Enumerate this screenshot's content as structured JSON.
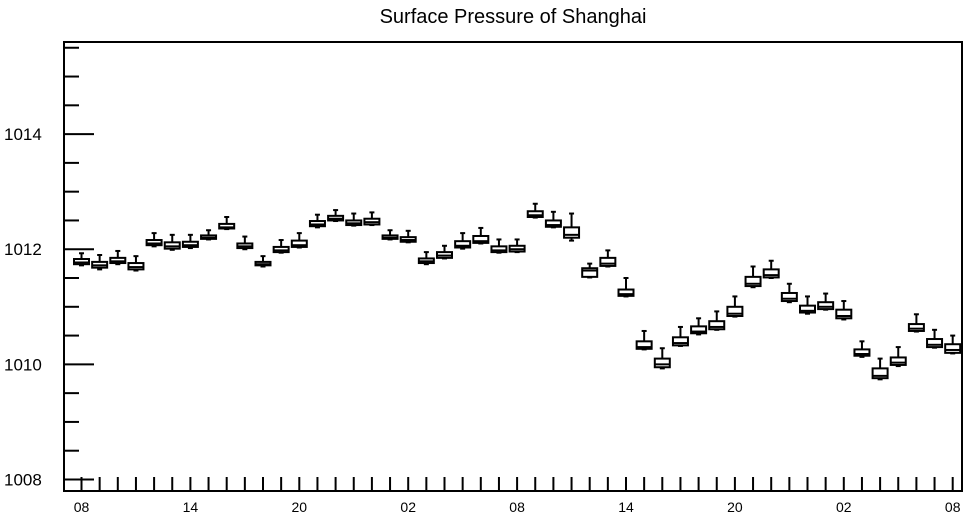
{
  "chart_data": {
    "type": "box",
    "title": "Surface Pressure of Shanghai",
    "xlabel": "",
    "ylabel": "",
    "ylim": [
      1007.8,
      1015.6
    ],
    "yticks": [
      1008,
      1010,
      1012,
      1014
    ],
    "ytick_labels": [
      "1008",
      "1010",
      "1012",
      "1014"
    ],
    "xtick_labels": [
      "08",
      "14",
      "20",
      "02",
      "08",
      "14",
      "20",
      "02",
      "08"
    ],
    "grid": false,
    "legend": "none",
    "boxes": [
      {
        "index": 0,
        "whisker_low": 1011.72,
        "q1": 1011.74,
        "median": 1011.77,
        "q3": 1011.83,
        "whisker_high": 1011.93
      },
      {
        "index": 1,
        "whisker_low": 1011.65,
        "q1": 1011.68,
        "median": 1011.72,
        "q3": 1011.78,
        "whisker_high": 1011.9
      },
      {
        "index": 2,
        "whisker_low": 1011.74,
        "q1": 1011.76,
        "median": 1011.79,
        "q3": 1011.85,
        "whisker_high": 1011.97
      },
      {
        "index": 3,
        "whisker_low": 1011.63,
        "q1": 1011.65,
        "median": 1011.69,
        "q3": 1011.76,
        "whisker_high": 1011.88
      },
      {
        "index": 4,
        "whisker_low": 1012.05,
        "q1": 1012.07,
        "median": 1012.1,
        "q3": 1012.16,
        "whisker_high": 1012.28
      },
      {
        "index": 5,
        "whisker_low": 1011.99,
        "q1": 1012.01,
        "median": 1012.05,
        "q3": 1012.12,
        "whisker_high": 1012.25
      },
      {
        "index": 6,
        "whisker_low": 1012.02,
        "q1": 1012.04,
        "median": 1012.07,
        "q3": 1012.13,
        "whisker_high": 1012.25
      },
      {
        "index": 7,
        "whisker_low": 1012.17,
        "q1": 1012.18,
        "median": 1012.2,
        "q3": 1012.24,
        "whisker_high": 1012.33
      },
      {
        "index": 8,
        "whisker_low": 1012.35,
        "q1": 1012.36,
        "median": 1012.38,
        "q3": 1012.44,
        "whisker_high": 1012.56
      },
      {
        "index": 9,
        "whisker_low": 1012.0,
        "q1": 1012.02,
        "median": 1012.05,
        "q3": 1012.1,
        "whisker_high": 1012.22
      },
      {
        "index": 10,
        "whisker_low": 1011.7,
        "q1": 1011.72,
        "median": 1011.74,
        "q3": 1011.78,
        "whisker_high": 1011.88
      },
      {
        "index": 11,
        "whisker_low": 1011.94,
        "q1": 1011.95,
        "median": 1011.98,
        "q3": 1012.04,
        "whisker_high": 1012.16
      },
      {
        "index": 12,
        "whisker_low": 1012.03,
        "q1": 1012.04,
        "median": 1012.07,
        "q3": 1012.15,
        "whisker_high": 1012.28
      },
      {
        "index": 13,
        "whisker_low": 1012.38,
        "q1": 1012.4,
        "median": 1012.43,
        "q3": 1012.49,
        "whisker_high": 1012.6
      },
      {
        "index": 14,
        "whisker_low": 1012.49,
        "q1": 1012.5,
        "median": 1012.53,
        "q3": 1012.58,
        "whisker_high": 1012.68
      },
      {
        "index": 15,
        "whisker_low": 1012.41,
        "q1": 1012.42,
        "median": 1012.45,
        "q3": 1012.5,
        "whisker_high": 1012.62
      },
      {
        "index": 16,
        "whisker_low": 1012.42,
        "q1": 1012.43,
        "median": 1012.47,
        "q3": 1012.53,
        "whisker_high": 1012.64
      },
      {
        "index": 17,
        "whisker_low": 1012.17,
        "q1": 1012.18,
        "median": 1012.2,
        "q3": 1012.24,
        "whisker_high": 1012.33
      },
      {
        "index": 18,
        "whisker_low": 1012.12,
        "q1": 1012.13,
        "median": 1012.16,
        "q3": 1012.21,
        "whisker_high": 1012.32
      },
      {
        "index": 19,
        "whisker_low": 1011.74,
        "q1": 1011.76,
        "median": 1011.79,
        "q3": 1011.84,
        "whisker_high": 1011.95
      },
      {
        "index": 20,
        "whisker_low": 1011.84,
        "q1": 1011.85,
        "median": 1011.89,
        "q3": 1011.95,
        "whisker_high": 1012.06
      },
      {
        "index": 21,
        "whisker_low": 1012.01,
        "q1": 1012.03,
        "median": 1012.06,
        "q3": 1012.14,
        "whisker_high": 1012.28
      },
      {
        "index": 22,
        "whisker_low": 1012.1,
        "q1": 1012.11,
        "median": 1012.14,
        "q3": 1012.23,
        "whisker_high": 1012.37
      },
      {
        "index": 23,
        "whisker_low": 1011.94,
        "q1": 1011.95,
        "median": 1011.98,
        "q3": 1012.05,
        "whisker_high": 1012.17
      },
      {
        "index": 24,
        "whisker_low": 1011.95,
        "q1": 1011.96,
        "median": 1012.0,
        "q3": 1012.06,
        "whisker_high": 1012.17
      },
      {
        "index": 25,
        "whisker_low": 1012.55,
        "q1": 1012.56,
        "median": 1012.59,
        "q3": 1012.66,
        "whisker_high": 1012.79
      },
      {
        "index": 26,
        "whisker_low": 1012.38,
        "q1": 1012.39,
        "median": 1012.42,
        "q3": 1012.5,
        "whisker_high": 1012.65
      },
      {
        "index": 27,
        "whisker_low": 1012.15,
        "q1": 1012.2,
        "median": 1012.25,
        "q3": 1012.38,
        "whisker_high": 1012.62
      },
      {
        "index": 28,
        "whisker_low": 1011.51,
        "q1": 1011.52,
        "median": 1011.63,
        "q3": 1011.67,
        "whisker_high": 1011.75
      },
      {
        "index": 29,
        "whisker_low": 1011.7,
        "q1": 1011.71,
        "median": 1011.75,
        "q3": 1011.85,
        "whisker_high": 1011.98
      },
      {
        "index": 30,
        "whisker_low": 1011.18,
        "q1": 1011.19,
        "median": 1011.22,
        "q3": 1011.3,
        "whisker_high": 1011.5
      },
      {
        "index": 31,
        "whisker_low": 1010.26,
        "q1": 1010.27,
        "median": 1010.3,
        "q3": 1010.4,
        "whisker_high": 1010.58
      },
      {
        "index": 32,
        "whisker_low": 1009.93,
        "q1": 1009.95,
        "median": 1010.0,
        "q3": 1010.1,
        "whisker_high": 1010.28
      },
      {
        "index": 33,
        "whisker_low": 1010.32,
        "q1": 1010.33,
        "median": 1010.37,
        "q3": 1010.47,
        "whisker_high": 1010.65
      },
      {
        "index": 34,
        "whisker_low": 1010.52,
        "q1": 1010.54,
        "median": 1010.57,
        "q3": 1010.66,
        "whisker_high": 1010.8
      },
      {
        "index": 35,
        "whisker_low": 1010.6,
        "q1": 1010.61,
        "median": 1010.65,
        "q3": 1010.75,
        "whisker_high": 1010.92
      },
      {
        "index": 36,
        "whisker_low": 1010.83,
        "q1": 1010.84,
        "median": 1010.88,
        "q3": 1011.0,
        "whisker_high": 1011.18
      },
      {
        "index": 37,
        "whisker_low": 1011.34,
        "q1": 1011.36,
        "median": 1011.4,
        "q3": 1011.52,
        "whisker_high": 1011.7
      },
      {
        "index": 38,
        "whisker_low": 1011.5,
        "q1": 1011.51,
        "median": 1011.55,
        "q3": 1011.65,
        "whisker_high": 1011.8
      },
      {
        "index": 39,
        "whisker_low": 1011.08,
        "q1": 1011.1,
        "median": 1011.14,
        "q3": 1011.24,
        "whisker_high": 1011.4
      },
      {
        "index": 40,
        "whisker_low": 1010.88,
        "q1": 1010.9,
        "median": 1010.93,
        "q3": 1011.02,
        "whisker_high": 1011.18
      },
      {
        "index": 41,
        "whisker_low": 1010.95,
        "q1": 1010.96,
        "median": 1011.0,
        "q3": 1011.08,
        "whisker_high": 1011.23
      },
      {
        "index": 42,
        "whisker_low": 1010.78,
        "q1": 1010.8,
        "median": 1010.84,
        "q3": 1010.95,
        "whisker_high": 1011.1
      },
      {
        "index": 43,
        "whisker_low": 1010.13,
        "q1": 1010.15,
        "median": 1010.18,
        "q3": 1010.26,
        "whisker_high": 1010.4
      },
      {
        "index": 44,
        "whisker_low": 1009.74,
        "q1": 1009.76,
        "median": 1009.8,
        "q3": 1009.93,
        "whisker_high": 1010.1
      },
      {
        "index": 45,
        "whisker_low": 1009.97,
        "q1": 1009.99,
        "median": 1010.03,
        "q3": 1010.12,
        "whisker_high": 1010.3
      },
      {
        "index": 46,
        "whisker_low": 1010.57,
        "q1": 1010.58,
        "median": 1010.62,
        "q3": 1010.7,
        "whisker_high": 1010.87
      },
      {
        "index": 47,
        "whisker_low": 1010.29,
        "q1": 1010.3,
        "median": 1010.34,
        "q3": 1010.44,
        "whisker_high": 1010.6
      },
      {
        "index": 48,
        "whisker_low": 1010.19,
        "q1": 1010.2,
        "median": 1010.25,
        "q3": 1010.35,
        "whisker_high": 1010.5
      }
    ]
  }
}
